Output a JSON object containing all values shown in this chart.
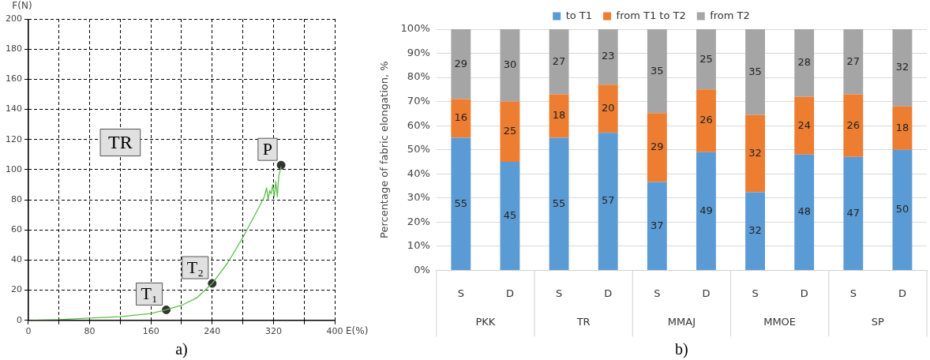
{
  "chart_data": [
    {
      "type": "line",
      "title": "TR",
      "xlabel": "E(%)",
      "ylabel": "F(N)",
      "xlim": [
        0,
        400
      ],
      "xticks": [
        0,
        {
          "value": 40,
          "label": null
        },
        80,
        {
          "value": 120,
          "label": null
        },
        160,
        {
          "value": 200,
          "label": null
        },
        240,
        {
          "value": 280,
          "label": null
        },
        320,
        {
          "value": 360,
          "label": null
        },
        400
      ],
      "ylim": [
        0,
        200
      ],
      "yticks": [
        0,
        20,
        40,
        60,
        80,
        100,
        120,
        140,
        160,
        180,
        200
      ],
      "grid": true,
      "legend": false,
      "series": [
        {
          "type": "line",
          "color": "#5cbf4a",
          "x": [
            0,
            40,
            80,
            120,
            160,
            180,
            200,
            220,
            240,
            260,
            280,
            300,
            308,
            311,
            313,
            315,
            317,
            319,
            321,
            323,
            325,
            327,
            330
          ],
          "values": [
            0,
            0.5,
            1.5,
            2.5,
            4.5,
            7,
            10,
            15,
            24.5,
            38,
            55,
            74,
            82,
            88,
            80,
            86,
            84,
            90,
            82,
            92,
            82,
            96,
            102
          ]
        },
        {
          "type": "scatter",
          "marker": "circle",
          "color": "#333333",
          "x": [
            180,
            240,
            330
          ],
          "values": [
            7,
            24.5,
            103
          ]
        }
      ],
      "annotations": [
        {
          "text": "T₁",
          "x": 180,
          "y": 7
        },
        {
          "text": "T₂",
          "x": 240,
          "y": 24.5
        },
        {
          "text": "P",
          "x": 330,
          "y": 103
        },
        "a)"
      ]
    },
    {
      "type": "bar",
      "stacked": true,
      "ylabel": "Percentage of fabric elongation, %",
      "categories": [
        "S",
        "D",
        "S",
        "D",
        "S",
        "D",
        "S",
        "D",
        "S",
        "D"
      ],
      "ylim": [
        0,
        100
      ],
      "yticks": [
        {
          "value": 0,
          "label": "0%"
        },
        {
          "value": 10,
          "label": "10%"
        },
        {
          "value": 20,
          "label": "20%"
        },
        {
          "value": 30,
          "label": "30%"
        },
        {
          "value": 40,
          "label": "40%"
        },
        {
          "value": 50,
          "label": "50%"
        },
        {
          "value": 60,
          "label": "60%"
        },
        {
          "value": 70,
          "label": "70%"
        },
        {
          "value": 80,
          "label": "80%"
        },
        {
          "value": 90,
          "label": "90%"
        },
        {
          "value": 100,
          "label": "100%"
        }
      ],
      "grid": "y",
      "legend": "top",
      "series": [
        {
          "name": "to T1",
          "color": "#5b9bd5",
          "values": [
            55,
            45,
            55,
            57,
            36.6,
            49,
            32.4,
            48,
            47,
            50
          ],
          "value_labels": [
            "55",
            "45",
            "55",
            "57",
            "37",
            "49",
            "32",
            "48",
            "47",
            "50"
          ]
        },
        {
          "name": "from T1 to T2",
          "color": "#ed7d31",
          "values": [
            16,
            25,
            18,
            20,
            28.6,
            26,
            32.1,
            24,
            26,
            18
          ],
          "value_labels": [
            "16",
            "25",
            "18",
            "20",
            "29",
            "26",
            "32",
            "24",
            "26",
            "18"
          ]
        },
        {
          "name": "from T2",
          "color": "#a5a5a5",
          "values": [
            29,
            30,
            27,
            23,
            34.8,
            25,
            35.5,
            28,
            27,
            32
          ],
          "value_labels": [
            "29",
            "30",
            "27",
            "23",
            "35",
            "25",
            "35",
            "28",
            "27",
            "32"
          ]
        }
      ],
      "annotations": [
        "PKK",
        "TR",
        "MMAJ",
        "MMOE",
        "SP",
        "b)"
      ]
    }
  ]
}
